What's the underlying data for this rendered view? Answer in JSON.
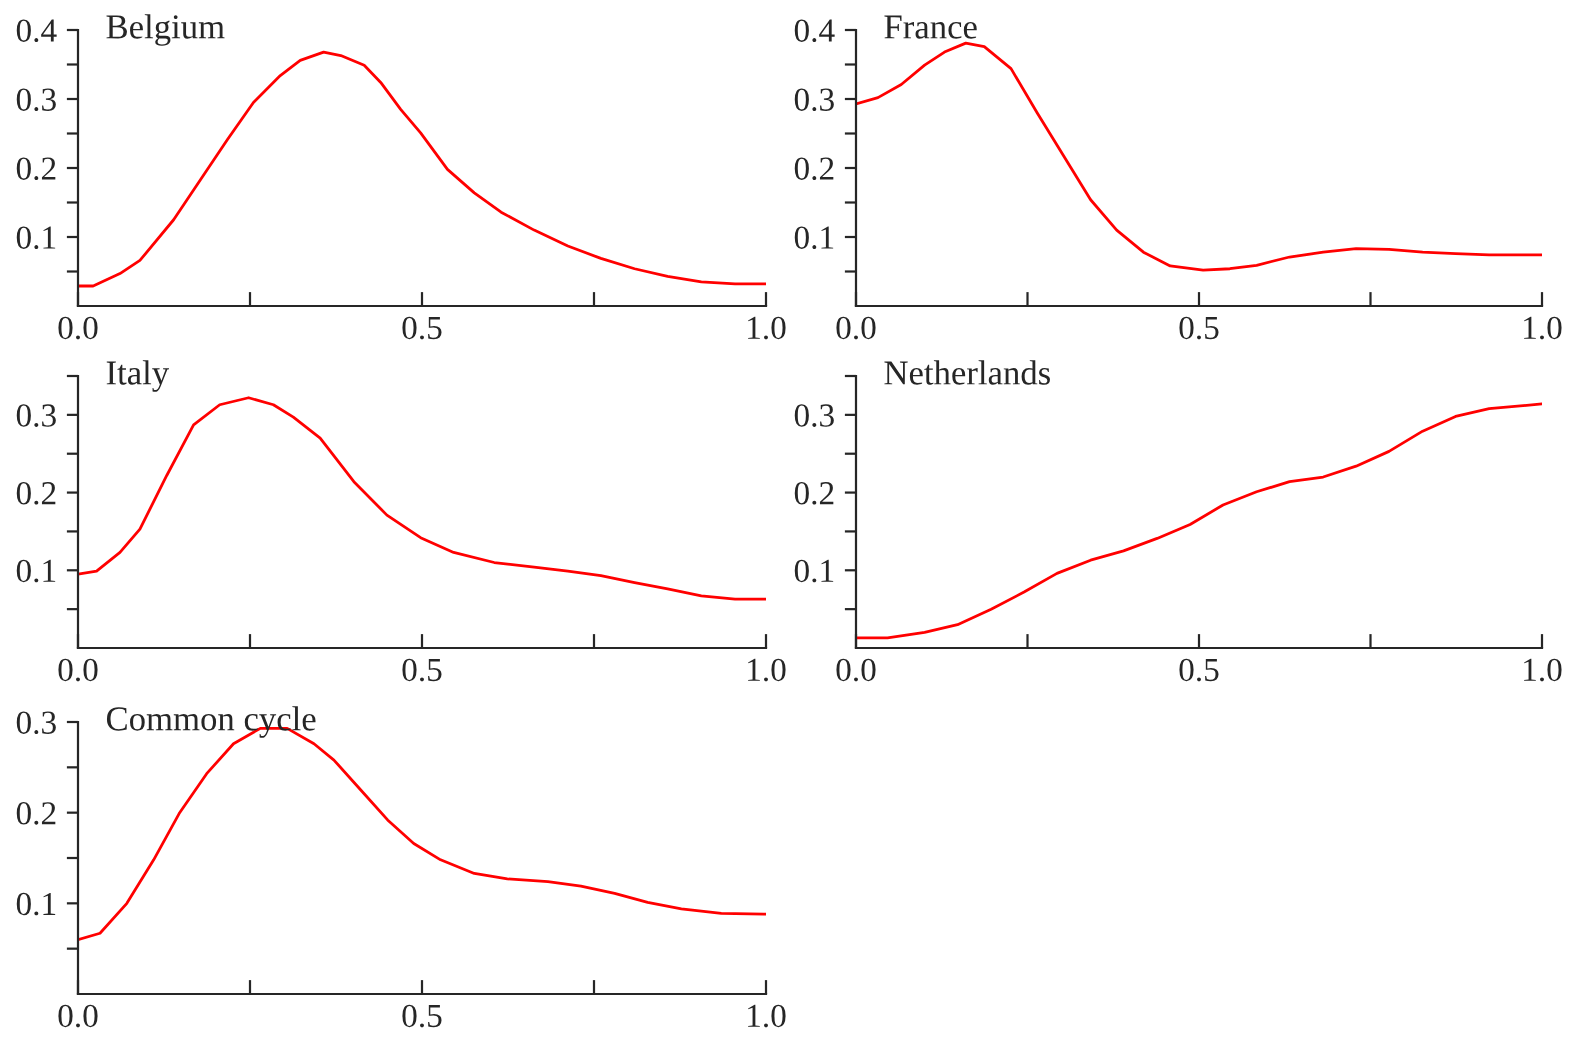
{
  "chart_data": [
    {
      "type": "line",
      "title": "Belgium",
      "xlim": [
        0,
        1
      ],
      "ylim": [
        0,
        0.4
      ],
      "xticks": [
        {
          "value": 0,
          "label": "0.0"
        },
        {
          "value": 0.25,
          "label": null
        },
        {
          "value": 0.5,
          "label": "0.5"
        },
        {
          "value": 0.75,
          "label": null
        },
        {
          "value": 1,
          "label": "1.0"
        }
      ],
      "yticks": [
        {
          "value": 0.05,
          "label": null
        },
        0.1,
        {
          "value": 0.15,
          "label": null
        },
        0.2,
        {
          "value": 0.25,
          "label": null
        },
        0.3,
        {
          "value": 0.35,
          "label": null
        },
        0.4
      ],
      "grid": false,
      "legend": false,
      "x": [
        0,
        0.022,
        0.061,
        0.09,
        0.139,
        0.178,
        0.217,
        0.255,
        0.294,
        0.323,
        0.357,
        0.382,
        0.416,
        0.44,
        0.469,
        0.498,
        0.537,
        0.576,
        0.615,
        0.663,
        0.712,
        0.76,
        0.809,
        0.857,
        0.906,
        0.955,
        1.0
      ],
      "series": [
        {
          "color": "#ff0000",
          "values": [
            0.029,
            0.029,
            0.047,
            0.066,
            0.125,
            0.183,
            0.241,
            0.295,
            0.334,
            0.356,
            0.368,
            0.363,
            0.349,
            0.324,
            0.285,
            0.251,
            0.198,
            0.164,
            0.136,
            0.11,
            0.087,
            0.069,
            0.054,
            0.043,
            0.035,
            0.032,
            0.032
          ]
        }
      ]
    },
    {
      "type": "line",
      "title": "France",
      "xlim": [
        0,
        1
      ],
      "ylim": [
        0,
        0.4
      ],
      "xticks": [
        {
          "value": 0,
          "label": "0.0"
        },
        {
          "value": 0.25,
          "label": null
        },
        {
          "value": 0.5,
          "label": "0.5"
        },
        {
          "value": 0.75,
          "label": null
        },
        {
          "value": 1,
          "label": "1.0"
        }
      ],
      "yticks": [
        {
          "value": 0.05,
          "label": null
        },
        0.1,
        {
          "value": 0.15,
          "label": null
        },
        0.2,
        {
          "value": 0.25,
          "label": null
        },
        0.3,
        {
          "value": 0.35,
          "label": null
        },
        0.4
      ],
      "grid": false,
      "legend": false,
      "x": [
        0,
        0.032,
        0.066,
        0.1,
        0.129,
        0.16,
        0.187,
        0.226,
        0.264,
        0.303,
        0.342,
        0.38,
        0.419,
        0.458,
        0.506,
        0.545,
        0.584,
        0.632,
        0.681,
        0.729,
        0.777,
        0.826,
        0.874,
        0.923,
        1.0
      ],
      "series": [
        {
          "color": "#ff0000",
          "values": [
            0.293,
            0.302,
            0.321,
            0.349,
            0.368,
            0.381,
            0.376,
            0.344,
            0.28,
            0.217,
            0.154,
            0.11,
            0.078,
            0.058,
            0.052,
            0.054,
            0.059,
            0.071,
            0.078,
            0.083,
            0.082,
            0.078,
            0.076,
            0.074,
            0.074
          ]
        }
      ]
    },
    {
      "type": "line",
      "title": "Italy",
      "xlim": [
        0,
        1
      ],
      "ylim": [
        0,
        0.35
      ],
      "xticks": [
        {
          "value": 0,
          "label": "0.0"
        },
        {
          "value": 0.25,
          "label": null
        },
        {
          "value": 0.5,
          "label": "0.5"
        },
        {
          "value": 0.75,
          "label": null
        },
        {
          "value": 1,
          "label": "1.0"
        }
      ],
      "yticks": [
        {
          "value": 0.05,
          "label": null
        },
        0.1,
        {
          "value": 0.15,
          "label": null
        },
        0.2,
        {
          "value": 0.25,
          "label": null
        },
        0.3,
        {
          "value": 0.35,
          "label": null
        }
      ],
      "grid": false,
      "legend": false,
      "x": [
        0,
        0.027,
        0.061,
        0.09,
        0.129,
        0.168,
        0.206,
        0.248,
        0.284,
        0.313,
        0.352,
        0.401,
        0.449,
        0.498,
        0.546,
        0.605,
        0.663,
        0.712,
        0.76,
        0.809,
        0.857,
        0.906,
        0.955,
        1.0
      ],
      "series": [
        {
          "color": "#ff0000",
          "values": [
            0.095,
            0.099,
            0.123,
            0.153,
            0.222,
            0.287,
            0.313,
            0.322,
            0.313,
            0.297,
            0.27,
            0.214,
            0.171,
            0.142,
            0.123,
            0.11,
            0.104,
            0.099,
            0.093,
            0.084,
            0.076,
            0.067,
            0.063,
            0.063
          ]
        }
      ]
    },
    {
      "type": "line",
      "title": "Netherlands",
      "xlim": [
        0,
        1
      ],
      "ylim": [
        0,
        0.35
      ],
      "xticks": [
        {
          "value": 0,
          "label": "0.0"
        },
        {
          "value": 0.25,
          "label": null
        },
        {
          "value": 0.5,
          "label": "0.5"
        },
        {
          "value": 0.75,
          "label": null
        },
        {
          "value": 1,
          "label": "1.0"
        }
      ],
      "yticks": [
        {
          "value": 0.05,
          "label": null
        },
        0.1,
        {
          "value": 0.15,
          "label": null
        },
        0.2,
        {
          "value": 0.25,
          "label": null
        },
        0.3,
        {
          "value": 0.35,
          "label": null
        }
      ],
      "grid": false,
      "legend": false,
      "x": [
        0,
        0.046,
        0.1,
        0.148,
        0.197,
        0.245,
        0.293,
        0.342,
        0.39,
        0.439,
        0.487,
        0.535,
        0.584,
        0.632,
        0.681,
        0.729,
        0.777,
        0.826,
        0.874,
        0.923,
        1.0
      ],
      "series": [
        {
          "color": "#ff0000",
          "values": [
            0.013,
            0.013,
            0.02,
            0.03,
            0.05,
            0.072,
            0.096,
            0.113,
            0.125,
            0.141,
            0.159,
            0.184,
            0.201,
            0.214,
            0.22,
            0.234,
            0.253,
            0.279,
            0.298,
            0.308,
            0.314
          ]
        }
      ]
    },
    {
      "type": "line",
      "title": "Common cycle",
      "xlim": [
        0,
        1
      ],
      "ylim": [
        0,
        0.3
      ],
      "xticks": [
        {
          "value": 0,
          "label": "0.0"
        },
        {
          "value": 0.25,
          "label": null
        },
        {
          "value": 0.5,
          "label": "0.5"
        },
        {
          "value": 0.75,
          "label": null
        },
        {
          "value": 1,
          "label": "1.0"
        }
      ],
      "yticks": [
        {
          "value": 0.05,
          "label": null
        },
        0.1,
        {
          "value": 0.15,
          "label": null
        },
        0.2,
        {
          "value": 0.25,
          "label": null
        },
        0.3
      ],
      "grid": false,
      "legend": false,
      "x": [
        0,
        0.032,
        0.071,
        0.11,
        0.147,
        0.187,
        0.226,
        0.265,
        0.304,
        0.343,
        0.372,
        0.411,
        0.45,
        0.488,
        0.527,
        0.576,
        0.624,
        0.683,
        0.731,
        0.78,
        0.828,
        0.877,
        0.935,
        1.0
      ],
      "series": [
        {
          "color": "#ff0000",
          "values": [
            0.06,
            0.067,
            0.1,
            0.148,
            0.199,
            0.243,
            0.276,
            0.293,
            0.293,
            0.276,
            0.258,
            0.225,
            0.192,
            0.166,
            0.148,
            0.133,
            0.127,
            0.124,
            0.119,
            0.111,
            0.101,
            0.094,
            0.089,
            0.088
          ]
        }
      ]
    }
  ]
}
